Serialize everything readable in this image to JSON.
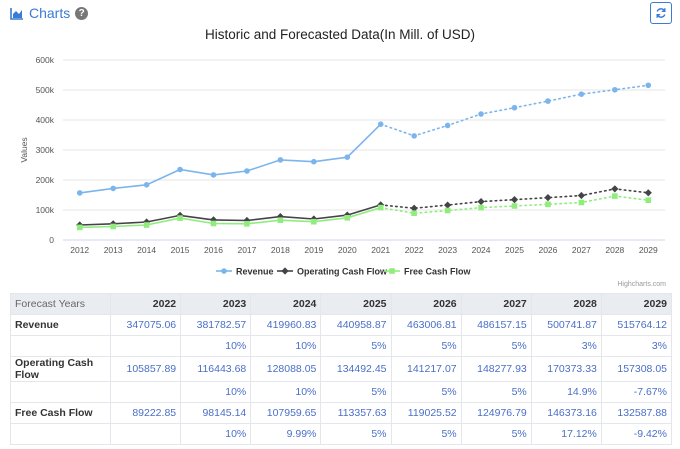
{
  "header": {
    "title": "Charts",
    "help_icon": "question-circle-icon",
    "chart_icon": "area-chart-icon",
    "refresh_icon": "refresh-icon"
  },
  "chart_data": {
    "type": "line",
    "title": "Historic and Forecasted Data(In Mill. of USD)",
    "xlabel": "",
    "ylabel": "Values",
    "categories": [
      "2012",
      "2013",
      "2014",
      "2015",
      "2016",
      "2017",
      "2018",
      "2019",
      "2020",
      "2021",
      "2022",
      "2023",
      "2024",
      "2025",
      "2026",
      "2027",
      "2028",
      "2029"
    ],
    "y_ticks": [
      "0",
      "100k",
      "200k",
      "300k",
      "400k",
      "500k",
      "600k"
    ],
    "ylim": [
      0,
      600000
    ],
    "forecast_start_index": 9,
    "series": [
      {
        "name": "Revenue",
        "color": "#7cb5ec",
        "marker": "circle",
        "values": [
          157000,
          172000,
          184000,
          235000,
          217000,
          230000,
          267000,
          261000,
          276000,
          386000,
          347075.06,
          381782.57,
          419960.83,
          440958.87,
          463006.81,
          486157.15,
          500741.87,
          515764.12
        ]
      },
      {
        "name": "Operating Cash Flow",
        "color": "#434348",
        "marker": "diamond",
        "values": [
          50000,
          54000,
          60000,
          82000,
          67000,
          65000,
          78000,
          70000,
          83000,
          117000,
          105857.89,
          116443.68,
          128088.05,
          134492.45,
          141217.07,
          148277.93,
          170373.33,
          157308.05
        ]
      },
      {
        "name": "Free Cash Flow",
        "color": "#90ed7d",
        "marker": "square",
        "values": [
          42000,
          45000,
          50000,
          73000,
          55000,
          54000,
          66000,
          61000,
          74000,
          108000,
          89222.85,
          98145.14,
          107959.65,
          113357.63,
          119025.52,
          124976.79,
          146373.16,
          132587.88
        ]
      }
    ],
    "legend_position": "bottom-center",
    "grid": true,
    "credits": "Highcharts.com"
  },
  "table": {
    "corner": "Forecast Years",
    "years": [
      "2022",
      "2023",
      "2024",
      "2025",
      "2026",
      "2027",
      "2028",
      "2029"
    ],
    "rows": [
      {
        "label": "Revenue",
        "values": [
          "347075.06",
          "381782.57",
          "419960.83",
          "440958.87",
          "463006.81",
          "486157.15",
          "500741.87",
          "515764.12"
        ],
        "growth": [
          "",
          "10%",
          "10%",
          "5%",
          "5%",
          "5%",
          "3%",
          "3%"
        ]
      },
      {
        "label": "Operating Cash Flow",
        "values": [
          "105857.89",
          "116443.68",
          "128088.05",
          "134492.45",
          "141217.07",
          "148277.93",
          "170373.33",
          "157308.05"
        ],
        "growth": [
          "",
          "10%",
          "10%",
          "5%",
          "5%",
          "5%",
          "14.9%",
          "-7.67%"
        ]
      },
      {
        "label": "Free Cash Flow",
        "values": [
          "89222.85",
          "98145.14",
          "107959.65",
          "113357.63",
          "119025.52",
          "124976.79",
          "146373.16",
          "132587.88"
        ],
        "growth": [
          "",
          "10%",
          "9.99%",
          "5%",
          "5%",
          "5%",
          "17.12%",
          "-9.42%"
        ]
      }
    ]
  }
}
